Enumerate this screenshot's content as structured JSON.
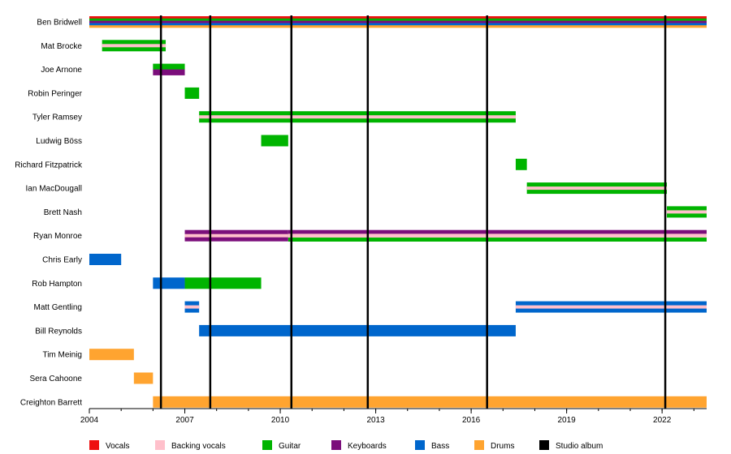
{
  "chart_data": {
    "type": "timeline",
    "title": "",
    "xlabel": "",
    "ylabel": "",
    "xlim": [
      2004,
      2023.4
    ],
    "ticks": [
      "2004",
      "2007",
      "2010",
      "2013",
      "2016",
      "2019",
      "2022"
    ],
    "tick_values": [
      2004,
      2007,
      2010,
      2013,
      2016,
      2019,
      2022
    ],
    "roles": [
      {
        "name": "Vocals",
        "color": "#ee1111"
      },
      {
        "name": "Backing vocals",
        "color": "#ffc0cb"
      },
      {
        "name": "Guitar",
        "color": "#00b400"
      },
      {
        "name": "Keyboards",
        "color": "#7b0e7b"
      },
      {
        "name": "Bass",
        "color": "#0066cc"
      },
      {
        "name": "Drums",
        "color": "#ffa430"
      },
      {
        "name": "Studio album",
        "color": "#000000"
      }
    ],
    "albums": [
      2006.25,
      2007.8,
      2010.35,
      2012.75,
      2016.5,
      2022.1
    ],
    "members": [
      {
        "name": "Ben Bridwell",
        "segments": [
          {
            "start": 2004,
            "end": 2023.4,
            "roles": [
              "Vocals",
              "Guitar",
              "Keyboards",
              "Bass",
              "Drums"
            ]
          }
        ]
      },
      {
        "name": "Mat Brocke",
        "segments": [
          {
            "start": 2004.4,
            "end": 2006.4,
            "roles": [
              "Guitar",
              "Backing vocals"
            ]
          }
        ]
      },
      {
        "name": "Joe Arnone",
        "segments": [
          {
            "start": 2006.0,
            "end": 2007.0,
            "roles": [
              "Guitar",
              "Keyboards"
            ]
          }
        ]
      },
      {
        "name": "Robin Peringer",
        "segments": [
          {
            "start": 2007.0,
            "end": 2007.45,
            "roles": [
              "Guitar"
            ]
          }
        ]
      },
      {
        "name": "Tyler Ramsey",
        "segments": [
          {
            "start": 2007.45,
            "end": 2017.4,
            "roles": [
              "Guitar",
              "Backing vocals"
            ]
          }
        ]
      },
      {
        "name": "Ludwig Böss",
        "segments": [
          {
            "start": 2009.4,
            "end": 2010.25,
            "roles": [
              "Guitar"
            ]
          }
        ]
      },
      {
        "name": "Richard Fitzpatrick",
        "segments": [
          {
            "start": 2017.4,
            "end": 2017.75,
            "roles": [
              "Guitar"
            ]
          }
        ]
      },
      {
        "name": "Ian MacDougall",
        "segments": [
          {
            "start": 2017.75,
            "end": 2022.15,
            "roles": [
              "Guitar",
              "Backing vocals"
            ]
          }
        ]
      },
      {
        "name": "Brett Nash",
        "segments": [
          {
            "start": 2022.15,
            "end": 2023.4,
            "roles": [
              "Guitar",
              "Backing vocals"
            ]
          }
        ]
      },
      {
        "name": "Ryan Monroe",
        "segments": [
          {
            "start": 2007.0,
            "end": 2010.25,
            "roles": [
              "Keyboards",
              "Backing vocals"
            ]
          },
          {
            "start": 2010.25,
            "end": 2023.4,
            "roles": [
              "Keyboards",
              "Guitar",
              "Backing vocals"
            ]
          }
        ]
      },
      {
        "name": "Chris Early",
        "segments": [
          {
            "start": 2004,
            "end": 2005.0,
            "roles": [
              "Bass"
            ]
          }
        ]
      },
      {
        "name": "Rob Hampton",
        "segments": [
          {
            "start": 2006.0,
            "end": 2007.0,
            "roles": [
              "Bass"
            ]
          },
          {
            "start": 2007.0,
            "end": 2009.4,
            "roles": [
              "Guitar"
            ]
          }
        ]
      },
      {
        "name": "Matt Gentling",
        "segments": [
          {
            "start": 2007.0,
            "end": 2007.45,
            "roles": [
              "Bass",
              "Backing vocals"
            ]
          },
          {
            "start": 2017.4,
            "end": 2023.4,
            "roles": [
              "Bass",
              "Backing vocals"
            ]
          }
        ]
      },
      {
        "name": "Bill Reynolds",
        "segments": [
          {
            "start": 2007.45,
            "end": 2017.4,
            "roles": [
              "Bass"
            ]
          }
        ]
      },
      {
        "name": "Tim Meinig",
        "segments": [
          {
            "start": 2004,
            "end": 2005.4,
            "roles": [
              "Drums"
            ]
          }
        ]
      },
      {
        "name": "Sera Cahoone",
        "segments": [
          {
            "start": 2005.4,
            "end": 2006.0,
            "roles": [
              "Drums"
            ]
          }
        ]
      },
      {
        "name": "Creighton Barrett",
        "segments": [
          {
            "start": 2006.0,
            "end": 2023.4,
            "roles": [
              "Drums"
            ]
          }
        ]
      }
    ]
  }
}
